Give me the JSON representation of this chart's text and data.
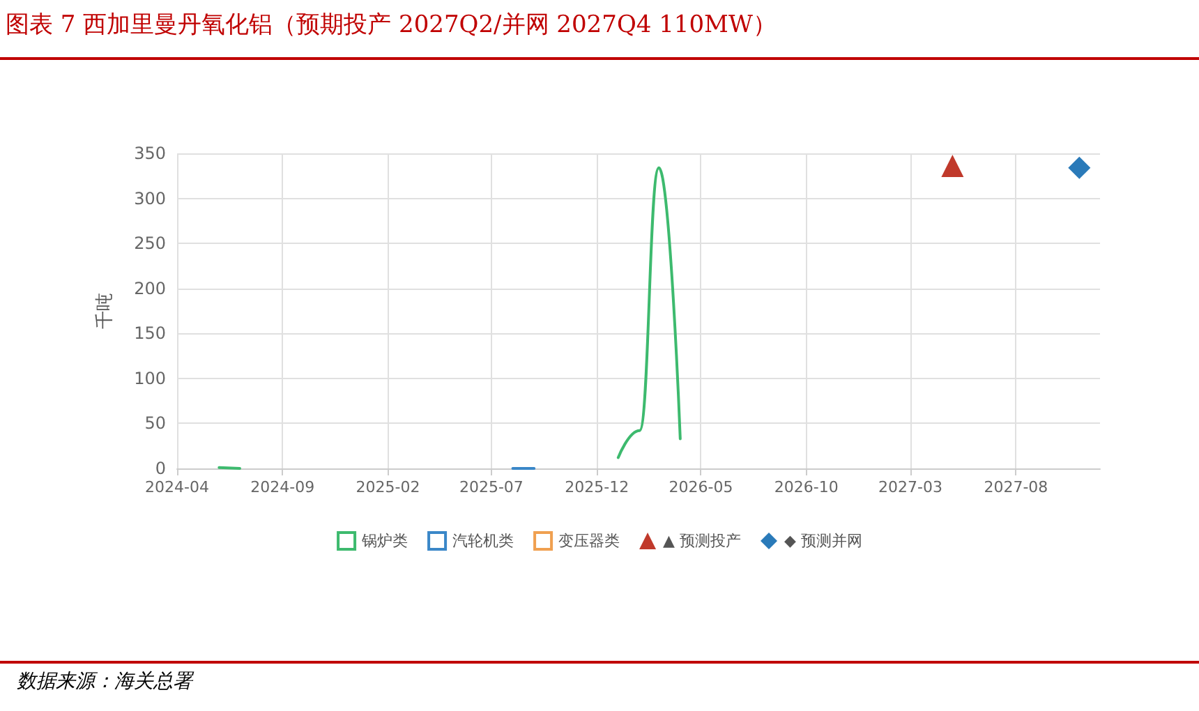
{
  "chart_data": {
    "type": "line",
    "title": "图表 7 西加里曼丹氧化铝（预期投产 2027Q2/并网 2027Q4 110MW）",
    "ylabel": "千吨",
    "annotations": [
      "数据来源：海关总署"
    ],
    "series": [
      {
        "name": "锅炉类",
        "color": "#3dba6e",
        "marker": "none",
        "x": [
          "2024-06",
          "2024-07",
          "2025-10",
          "2026-01",
          "2026-02",
          "2026-03",
          "2026-04"
        ],
        "values": [
          1,
          0,
          null,
          12,
          42,
          334,
          33
        ]
      },
      {
        "name": "汽轮机类",
        "color": "#3a87c8",
        "marker": "none",
        "x": [
          "2025-08",
          "2025-09"
        ],
        "values": [
          0,
          0
        ]
      },
      {
        "name": "变压器类",
        "color": "#f0a050",
        "marker": "none"
      },
      {
        "name": "▲ 预测投产",
        "type": "scatter",
        "color": "#c0392b",
        "marker": "triangle",
        "x": [
          "2027-05"
        ],
        "values": [
          336
        ]
      },
      {
        "name": "◆ 预测并网",
        "type": "scatter",
        "color": "#2a7ab9",
        "marker": "diamond",
        "x": [
          "2027-11"
        ],
        "values": [
          334
        ]
      }
    ],
    "xlim": [
      "2024-04",
      "2027-12"
    ],
    "xticks": [
      "2024-04",
      "2024-09",
      "2025-02",
      "2025-07",
      "2025-12",
      "2026-05",
      "2026-10",
      "2027-03",
      "2027-08"
    ],
    "ylim": [
      0,
      350
    ],
    "yticks": [
      0,
      50,
      100,
      150,
      200,
      250,
      300,
      350
    ],
    "grid": true,
    "legend": "bottom"
  }
}
